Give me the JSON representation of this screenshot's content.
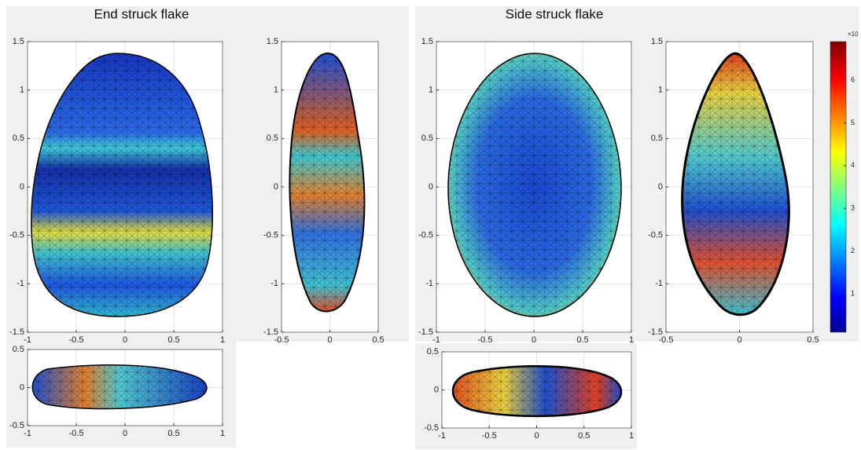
{
  "titles": [
    "End struck flake",
    "Side struck flake"
  ],
  "panels": [
    {
      "xlim": [
        -1,
        1
      ],
      "ylim": [
        -1.5,
        1.5
      ],
      "xticks": [
        -1,
        -0.5,
        0,
        0.5,
        1
      ],
      "yticks": [
        -1.5,
        -1,
        -0.5,
        0,
        0.5,
        1,
        1.5
      ]
    },
    {
      "xlim": [
        -0.5,
        0.5
      ],
      "ylim": [
        -1.5,
        1.5
      ],
      "xticks": [
        -0.5,
        0,
        0.5
      ],
      "yticks": [
        -1.5,
        -1,
        -0.5,
        0,
        0.5,
        1,
        1.5
      ]
    },
    {
      "xlim": [
        -1,
        1
      ],
      "ylim": [
        -1.5,
        1.5
      ],
      "xticks": [
        -1,
        -0.5,
        0,
        0.5,
        1
      ],
      "yticks": [
        -1.5,
        -1,
        -0.5,
        0,
        0.5,
        1,
        1.5
      ]
    },
    {
      "xlim": [
        -0.5,
        0.5
      ],
      "ylim": [
        -1.5,
        1.5
      ],
      "xticks": [
        -0.5,
        0,
        0.5
      ],
      "yticks": [
        -1.5,
        -1,
        -0.5,
        0,
        0.5,
        1,
        1.5
      ]
    },
    {
      "xlim": [
        -1,
        1
      ],
      "ylim": [
        -0.5,
        0.5
      ],
      "xticks": [
        -1,
        -0.5,
        0,
        0.5,
        1
      ],
      "yticks": [
        -0.5,
        0,
        0.5
      ]
    },
    {
      "xlim": [
        -1,
        1
      ],
      "ylim": [
        -0.5,
        0.5
      ],
      "xticks": [
        -1,
        -0.5,
        0,
        0.5,
        1
      ],
      "yticks": [
        -0.5,
        0,
        0.5
      ]
    }
  ],
  "colorbar": {
    "clim": [
      0.1,
      6.9
    ],
    "ticks": [
      1,
      2,
      3,
      4,
      5,
      6
    ],
    "exponent_label": "×10"
  }
}
